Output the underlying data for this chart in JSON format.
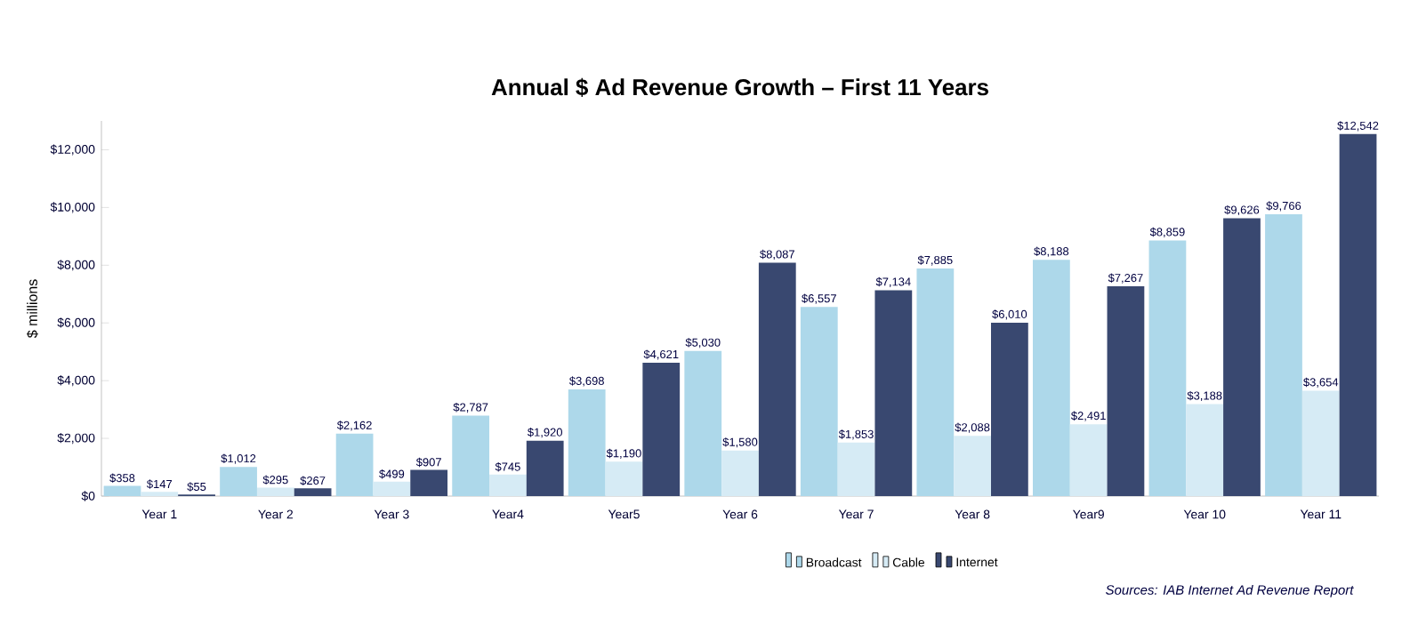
{
  "chart_data": {
    "type": "bar",
    "title": "Annual $ Ad Revenue Growth – First 11 Years",
    "ylabel": "$ millions",
    "categories": [
      "Year 1",
      "Year 2",
      "Year 3",
      "Year4",
      "Year5",
      "Year 6",
      "Year 7",
      "Year 8",
      "Year9",
      "Year 10",
      "Year 11"
    ],
    "series": [
      {
        "name": "Broadcast",
        "color": "#add8ea",
        "values": [
          358,
          1012,
          2162,
          2787,
          3698,
          5030,
          6557,
          7885,
          8188,
          8859,
          9766
        ],
        "value_labels": [
          "$358",
          "$1,012",
          "$2,162",
          "$2,787",
          "$3,698",
          "$5,030",
          "$6,557",
          "$7,885",
          "$8,188",
          "$8,859",
          "$9,766"
        ]
      },
      {
        "name": "Cable",
        "color": "#d6ebf5",
        "values": [
          147,
          295,
          499,
          745,
          1190,
          1580,
          1853,
          2088,
          2491,
          3188,
          3654
        ],
        "value_labels": [
          "$147",
          "$295",
          "$499",
          "$745",
          "$1,190",
          "$1,580",
          "$1,853",
          "$2,088",
          "$2,491",
          "$3,188",
          "$3,654"
        ]
      },
      {
        "name": "Internet",
        "color": "#394870",
        "values": [
          55,
          267,
          907,
          1920,
          4621,
          8087,
          7134,
          6010,
          7267,
          9626,
          12542
        ],
        "value_labels": [
          "$55",
          "$267",
          "$907",
          "$1,920",
          "$4,621",
          "$8,087",
          "$7,134",
          "$6,010",
          "$7,267",
          "$9,626",
          "$12,542"
        ]
      }
    ],
    "ylim": [
      0,
      13000
    ],
    "yticks": [
      {
        "value": 0,
        "label": "$0"
      },
      {
        "value": 2000,
        "label": "$2,000"
      },
      {
        "value": 4000,
        "label": "$4,000"
      },
      {
        "value": 6000,
        "label": "$6,000"
      },
      {
        "value": 8000,
        "label": "$8,000"
      },
      {
        "value": 10000,
        "label": "$10,000"
      },
      {
        "value": 12000,
        "label": "$12,000"
      }
    ],
    "grid": false,
    "legend": "bottom",
    "annotations": [
      "Sources: IAB Internet Ad Revenue Report"
    ]
  }
}
